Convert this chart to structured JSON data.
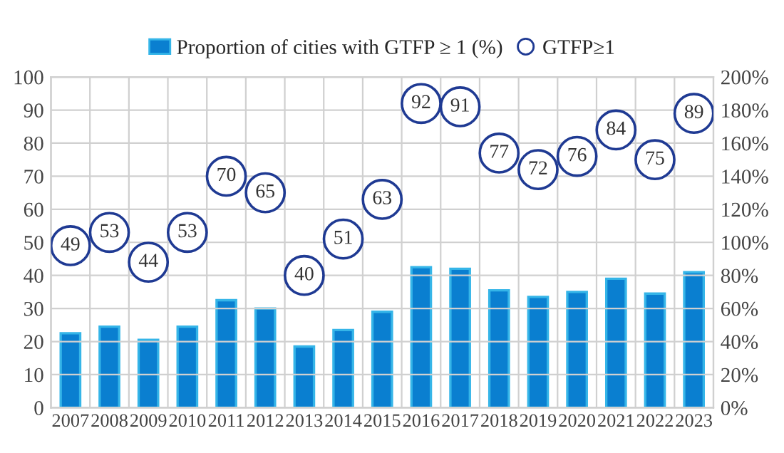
{
  "chart_data": {
    "type": "bar",
    "categories": [
      "2007",
      "2008",
      "2009",
      "2010",
      "2011",
      "2012",
      "2013",
      "2014",
      "2015",
      "2016",
      "2017",
      "2018",
      "2019",
      "2020",
      "2021",
      "2022",
      "2023"
    ],
    "series": [
      {
        "name": "Proportion of cities with GTFP ≥ 1 (%)",
        "axis": "y2",
        "color": "#0a7fd0",
        "values": [
          45,
          49,
          41,
          49,
          65,
          60,
          37,
          47,
          58,
          85,
          84,
          71,
          67,
          70,
          78,
          69,
          82
        ]
      },
      {
        "name": "GTFP≥1",
        "type": "scatter",
        "color": "#1f3a93",
        "data_labels": true,
        "values": [
          49,
          53,
          44,
          53,
          70,
          65,
          40,
          51,
          63,
          92,
          91,
          77,
          72,
          76,
          84,
          75,
          89
        ]
      }
    ],
    "ylim": [
      0,
      100
    ],
    "yticks": [
      0,
      10,
      20,
      30,
      40,
      50,
      60,
      70,
      80,
      90,
      100
    ],
    "y2lim": [
      0,
      200
    ],
    "y2ticks": [
      {
        "value": 0,
        "label": "0%"
      },
      {
        "value": 20,
        "label": "20%"
      },
      {
        "value": 40,
        "label": "40%"
      },
      {
        "value": 60,
        "label": "60%"
      },
      {
        "value": 80,
        "label": "80%"
      },
      {
        "value": 100,
        "label": "100%"
      },
      {
        "value": 120,
        "label": "120%"
      },
      {
        "value": 140,
        "label": "140%"
      },
      {
        "value": 160,
        "label": "160%"
      },
      {
        "value": 180,
        "label": "180%"
      },
      {
        "value": 200,
        "label": "200%"
      }
    ],
    "grid": true,
    "legend": "top",
    "marker": "circle"
  }
}
